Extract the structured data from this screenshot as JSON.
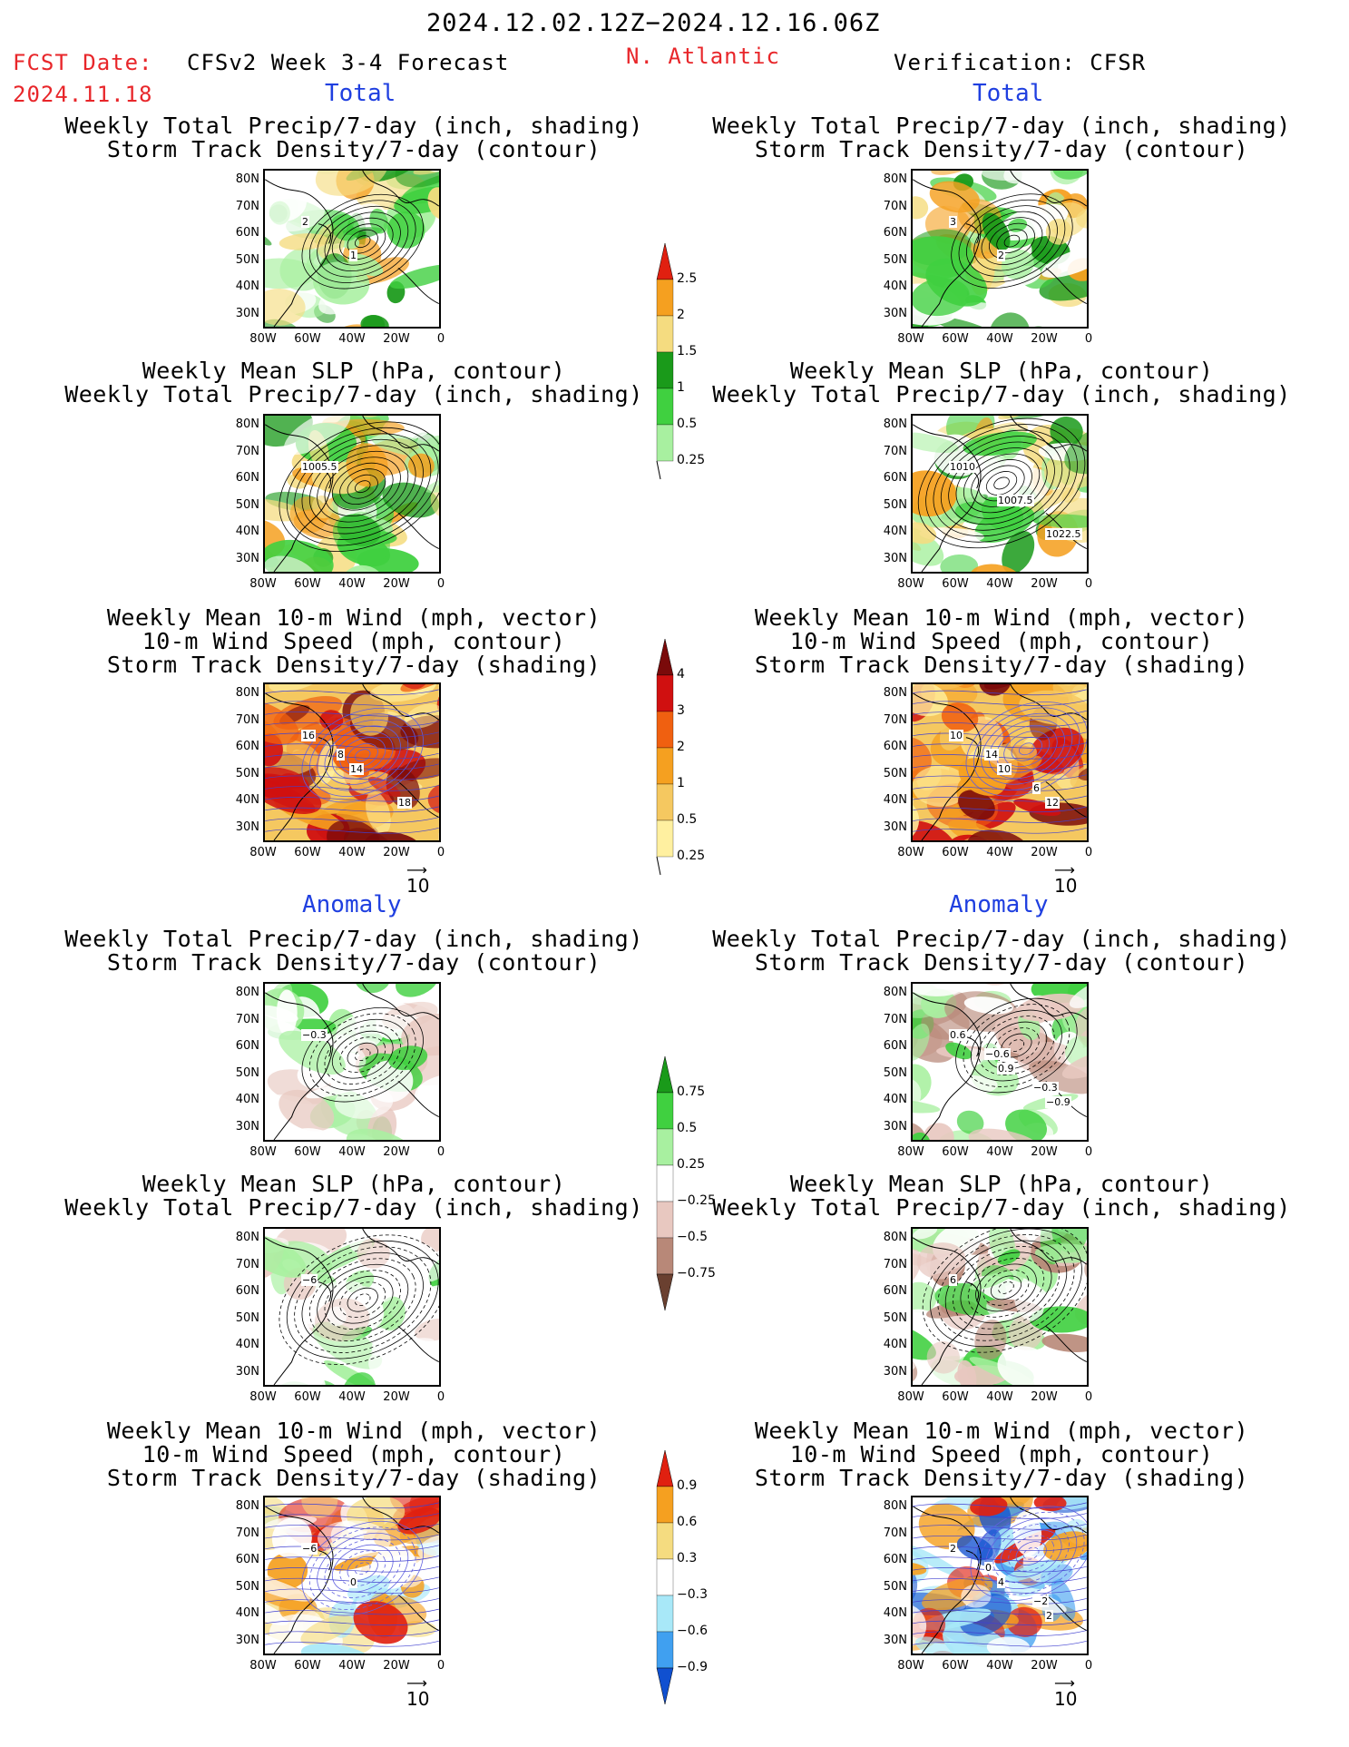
{
  "header": {
    "period": "2024.12.02.12Z−2024.12.16.06Z",
    "fcst_label": "FCST Date:",
    "fcst_date": "2024.11.18",
    "model": "CFSv2 Week 3-4 Forecast",
    "region": "N. Atlantic",
    "verification": "Verification: CFSR"
  },
  "sections": {
    "total": "Total",
    "anomaly": "Anomaly"
  },
  "titles": {
    "precip_track": [
      "Weekly Total Precip/7-day (inch, shading)",
      "Storm Track Density/7-day (contour)"
    ],
    "slp_precip": [
      "Weekly Mean SLP (hPa, contour)",
      "Weekly Total Precip/7-day (inch, shading)"
    ],
    "wind_track": [
      "Weekly Mean 10-m Wind (mph, vector)",
      "10-m Wind Speed (mph, contour)",
      "Storm Track Density/7-day (shading)"
    ]
  },
  "axes": {
    "lat_ticks": [
      "80N",
      "70N",
      "60N",
      "50N",
      "40N",
      "30N"
    ],
    "lon_ticks": [
      "80W",
      "60W",
      "40W",
      "20W",
      "0"
    ]
  },
  "reference_vector": "10",
  "colorbars": {
    "total_precip": {
      "labels": [
        "2.5",
        "2",
        "1.5",
        "1",
        "0.5",
        "0.25"
      ],
      "colors": [
        "#e02010",
        "#f5a020",
        "#f5dc80",
        "#1a9a1a",
        "#40d040",
        "#a8f0a0"
      ]
    },
    "total_track": {
      "labels": [
        "4",
        "3",
        "2",
        "1",
        "0.5",
        "0.25"
      ],
      "colors": [
        "#7a0a0a",
        "#d01010",
        "#f06010",
        "#f5a020",
        "#f5c860",
        "#fff0a0"
      ]
    },
    "anom_precip": {
      "labels": [
        "0.75",
        "0.5",
        "0.25",
        "−0.25",
        "−0.5",
        "−0.75"
      ],
      "colors": [
        "#1a9a1a",
        "#40d040",
        "#a8f0a0",
        "#ffffff",
        "#e8c8c0",
        "#b88878",
        "#6a4030"
      ]
    },
    "anom_track": {
      "labels": [
        "0.9",
        "0.6",
        "0.3",
        "−0.3",
        "−0.6",
        "−0.9"
      ],
      "colors": [
        "#e02010",
        "#f5a020",
        "#f5dc80",
        "#ffffff",
        "#a8e8f8",
        "#40a0f0",
        "#1050d0"
      ]
    }
  },
  "contour_labels": {
    "fc_precip_track": [
      "2",
      "1"
    ],
    "obs_precip_track": [
      "3",
      "2"
    ],
    "fc_slp": [
      "1005.5"
    ],
    "obs_slp": [
      "1010",
      "1007.5",
      "1022.5"
    ],
    "fc_wind": [
      "16",
      "14",
      "18",
      "8"
    ],
    "obs_wind": [
      "10",
      "10",
      "12",
      "14",
      "6"
    ],
    "fc_anom_precip": [
      "−0.3"
    ],
    "obs_anom_precip": [
      "0.6",
      "0.9",
      "−0.9",
      "−0.6",
      "−0.3"
    ],
    "fc_anom_slp": [
      "−6"
    ],
    "obs_anom_slp": [
      "6"
    ],
    "fc_anom_wind": [
      "−6",
      "0"
    ],
    "obs_anom_wind": [
      "2",
      "4",
      "2",
      "0",
      "−2"
    ]
  }
}
